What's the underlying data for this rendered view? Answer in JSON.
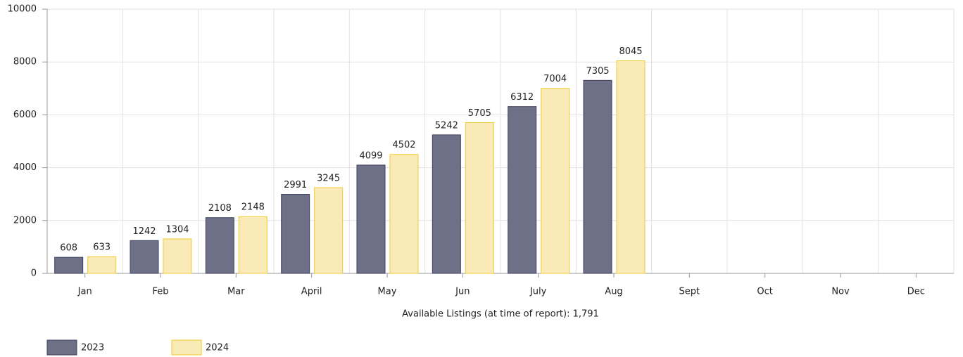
{
  "chart_data": {
    "type": "bar",
    "xlabel": "Available Listings (at time of report): 1,791",
    "categories": [
      "Jan",
      "Feb",
      "Mar",
      "April",
      "May",
      "Jun",
      "July",
      "Aug",
      "Sept",
      "Oct",
      "Nov",
      "Dec"
    ],
    "series": [
      {
        "name": "2023",
        "color": "#6e7087",
        "values": [
          608,
          1242,
          2108,
          2991,
          4099,
          5242,
          6312,
          7305,
          null,
          null,
          null,
          null
        ]
      },
      {
        "name": "2024",
        "color": "#faeab7",
        "values": [
          633,
          1304,
          2148,
          3245,
          4502,
          5705,
          7004,
          8045,
          null,
          null,
          null,
          null
        ]
      }
    ],
    "ylim": [
      0,
      10000
    ],
    "yticks": [
      0,
      2000,
      4000,
      6000,
      8000,
      10000
    ],
    "grid": true,
    "legend": "bottom-left"
  }
}
